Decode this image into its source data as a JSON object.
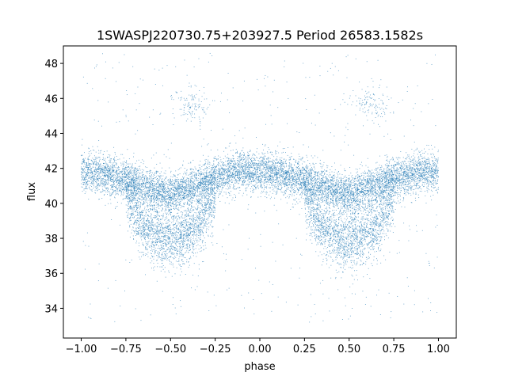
{
  "chart_data": {
    "type": "scatter",
    "title": "1SWASPJ220730.75+203927.5 Period 26583.1582s",
    "xlabel": "phase",
    "ylabel": "flux",
    "xlim": [
      -1.1,
      1.1
    ],
    "ylim": [
      32.3,
      49.0
    ],
    "x_ticks": [
      -1.0,
      -0.75,
      -0.5,
      -0.25,
      0.0,
      0.25,
      0.5,
      0.75,
      1.0
    ],
    "x_tick_labels": [
      "−1.00",
      "−0.75",
      "−0.50",
      "−0.25",
      "0.00",
      "0.25",
      "0.50",
      "0.75",
      "1.00"
    ],
    "y_ticks": [
      34,
      36,
      38,
      40,
      42,
      44,
      46,
      48
    ],
    "y_tick_labels": [
      "34",
      "36",
      "38",
      "40",
      "42",
      "44",
      "46",
      "48"
    ],
    "grid": false,
    "legend": "none",
    "marker_color": "#1f77b4",
    "description_of_distribution": {
      "x_range": [
        -1.0,
        1.0
      ],
      "upper_branch_sampled": [
        {
          "x": -1.0,
          "y": 41.8
        },
        {
          "x": -0.9,
          "y": 41.7
        },
        {
          "x": -0.75,
          "y": 41.3
        },
        {
          "x": -0.6,
          "y": 40.8
        },
        {
          "x": -0.5,
          "y": 40.5
        },
        {
          "x": -0.4,
          "y": 40.8
        },
        {
          "x": -0.25,
          "y": 41.5
        },
        {
          "x": -0.1,
          "y": 41.9
        },
        {
          "x": 0.0,
          "y": 41.8
        },
        {
          "x": 0.1,
          "y": 41.7
        },
        {
          "x": 0.25,
          "y": 41.3
        },
        {
          "x": 0.4,
          "y": 40.8
        },
        {
          "x": 0.5,
          "y": 40.5
        },
        {
          "x": 0.6,
          "y": 40.8
        },
        {
          "x": 0.75,
          "y": 41.4
        },
        {
          "x": 0.9,
          "y": 41.8
        },
        {
          "x": 1.0,
          "y": 41.8
        }
      ],
      "lower_dip_sampled": [
        {
          "x": -0.75,
          "y": 40.5
        },
        {
          "x": -0.65,
          "y": 38.6
        },
        {
          "x": -0.55,
          "y": 38.0
        },
        {
          "x": -0.45,
          "y": 38.0
        },
        {
          "x": -0.35,
          "y": 38.7
        },
        {
          "x": -0.25,
          "y": 40.5
        },
        {
          "x": 0.25,
          "y": 40.5
        },
        {
          "x": 0.35,
          "y": 38.6
        },
        {
          "x": 0.45,
          "y": 38.0
        },
        {
          "x": 0.55,
          "y": 38.0
        },
        {
          "x": 0.65,
          "y": 38.7
        },
        {
          "x": 0.75,
          "y": 40.5
        }
      ],
      "outlier_clumps": [
        {
          "x": -0.38,
          "y": 45.6
        },
        {
          "x": 0.62,
          "y": 45.6
        }
      ]
    }
  }
}
